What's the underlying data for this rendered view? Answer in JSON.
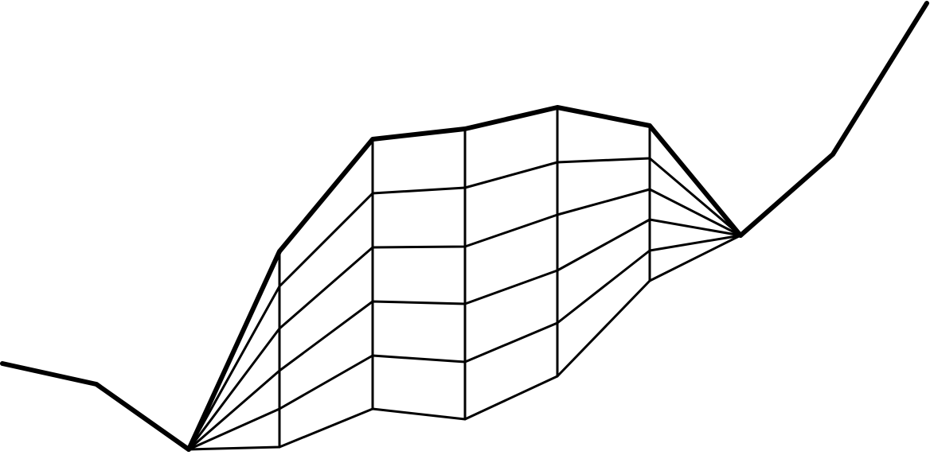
{
  "diagram": {
    "description_visible_text": "",
    "style": {
      "stroke_color": "#000000",
      "background_color": "#ffffff"
    }
  }
}
